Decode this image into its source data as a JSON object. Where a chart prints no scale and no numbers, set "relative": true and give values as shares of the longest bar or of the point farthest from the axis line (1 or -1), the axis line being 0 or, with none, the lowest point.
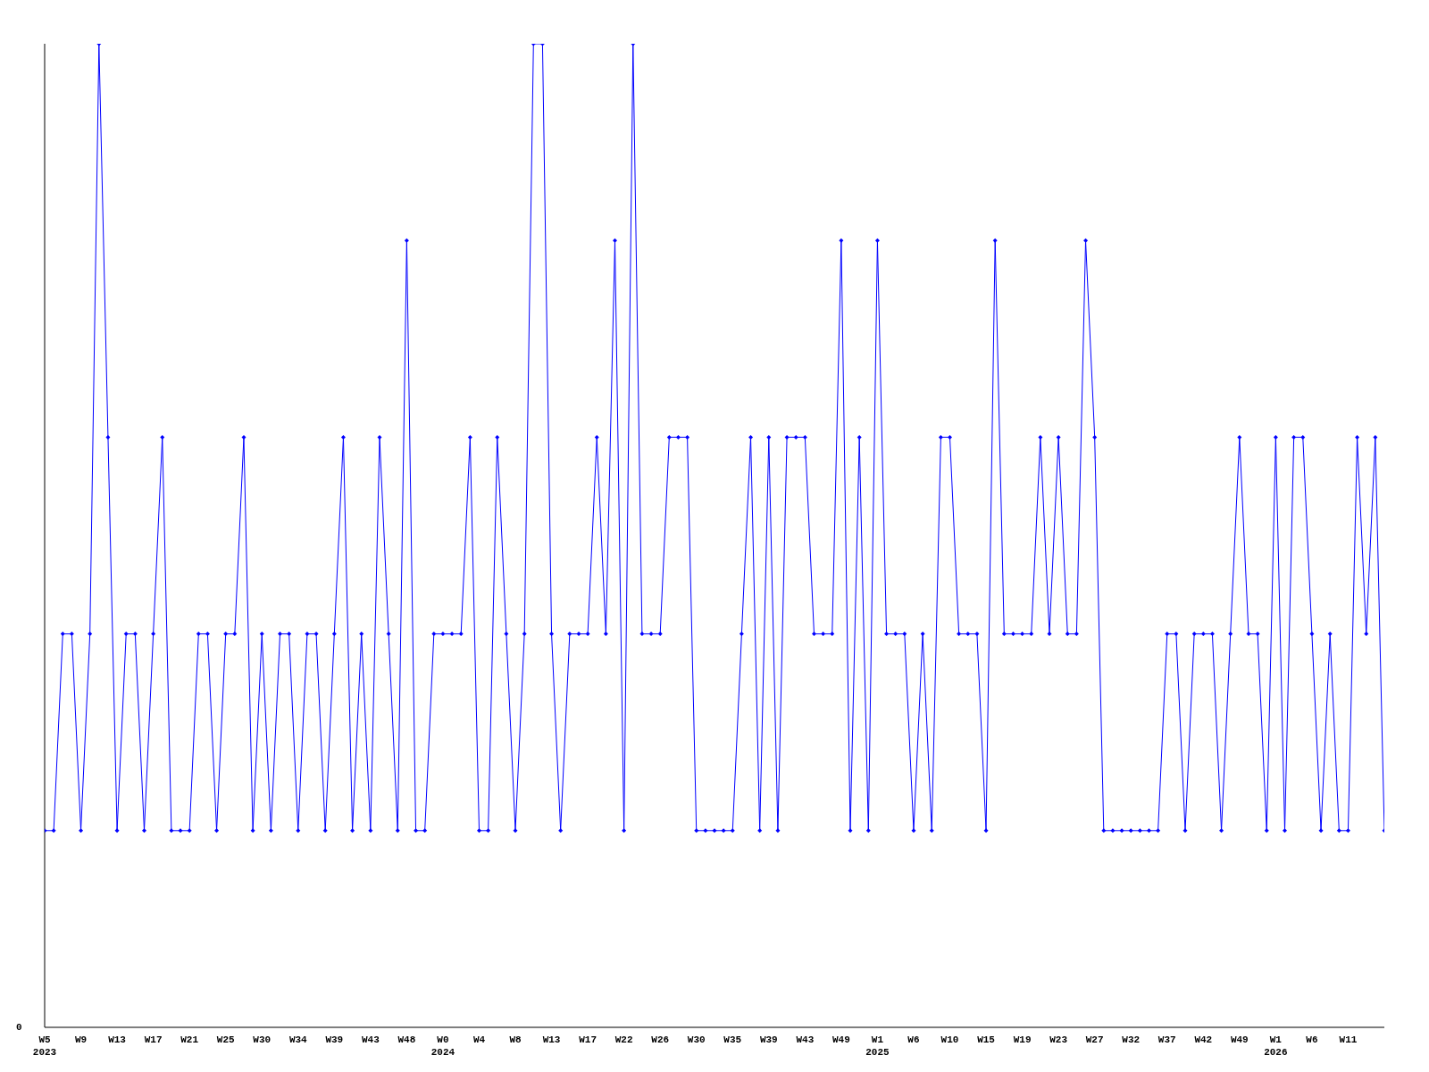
{
  "chart_data": {
    "type": "line",
    "relative": true,
    "marker": "diamond",
    "line_style": "solid",
    "grid": false,
    "legend": false,
    "annotations": [
      "0"
    ],
    "categories": [
      "W5\n2023",
      null,
      null,
      null,
      "W9",
      null,
      null,
      null,
      "W13",
      null,
      null,
      null,
      "W17",
      null,
      null,
      null,
      "W21",
      null,
      null,
      null,
      "W25",
      null,
      null,
      null,
      "W30",
      null,
      null,
      null,
      "W34",
      null,
      null,
      null,
      "W39",
      null,
      null,
      null,
      "W43",
      null,
      null,
      null,
      "W48",
      null,
      null,
      null,
      "W0\n2024",
      null,
      null,
      null,
      "W4",
      null,
      null,
      null,
      "W8",
      null,
      null,
      null,
      "W13",
      null,
      null,
      null,
      "W17",
      null,
      null,
      null,
      "W22",
      null,
      null,
      null,
      "W26",
      null,
      null,
      null,
      "W30",
      null,
      null,
      null,
      "W35",
      null,
      null,
      null,
      "W39",
      null,
      null,
      null,
      "W43",
      null,
      null,
      null,
      "W49",
      null,
      null,
      null,
      "W1\n2025",
      null,
      null,
      null,
      "W6",
      null,
      null,
      null,
      "W10",
      null,
      null,
      null,
      "W15",
      null,
      null,
      null,
      "W19",
      null,
      null,
      null,
      "W23",
      null,
      null,
      null,
      "W27",
      null,
      null,
      null,
      "W32",
      null,
      null,
      null,
      "W37",
      null,
      null,
      null,
      "W42",
      null,
      null,
      null,
      "W49",
      null,
      null,
      null,
      "W1\n2026",
      null,
      null,
      null,
      "W6",
      null,
      null,
      null,
      "W11",
      null,
      null,
      null,
      null
    ],
    "series": [
      {
        "color": "#0000ff",
        "values": [
          0.2,
          0.2,
          0.4,
          0.4,
          0.2,
          0.4,
          1.0,
          0.6,
          0.2,
          0.4,
          0.4,
          0.2,
          0.4,
          0.6,
          0.2,
          0.2,
          0.2,
          0.4,
          0.4,
          0.2,
          0.4,
          0.4,
          0.6,
          0.2,
          0.4,
          0.2,
          0.4,
          0.4,
          0.2,
          0.4,
          0.4,
          0.2,
          0.4,
          0.6,
          0.2,
          0.4,
          0.2,
          0.6,
          0.4,
          0.2,
          0.8,
          0.2,
          0.2,
          0.4,
          0.4,
          0.4,
          0.4,
          0.6,
          0.2,
          0.2,
          0.6,
          0.4,
          0.2,
          0.4,
          1.0,
          1.0,
          0.4,
          0.2,
          0.4,
          0.4,
          0.4,
          0.6,
          0.4,
          0.8,
          0.2,
          1.0,
          0.4,
          0.4,
          0.4,
          0.6,
          0.6,
          0.6,
          0.2,
          0.2,
          0.2,
          0.2,
          0.2,
          0.4,
          0.6,
          0.2,
          0.6,
          0.2,
          0.6,
          0.6,
          0.6,
          0.4,
          0.4,
          0.4,
          0.8,
          0.2,
          0.6,
          0.2,
          0.8,
          0.4,
          0.4,
          0.4,
          0.2,
          0.4,
          0.2,
          0.6,
          0.6,
          0.4,
          0.4,
          0.4,
          0.2,
          0.8,
          0.4,
          0.4,
          0.4,
          0.4,
          0.6,
          0.4,
          0.6,
          0.4,
          0.4,
          0.8,
          0.6,
          0.2,
          0.2,
          0.2,
          0.2,
          0.2,
          0.2,
          0.2,
          0.4,
          0.4,
          0.2,
          0.4,
          0.4,
          0.4,
          0.2,
          0.4,
          0.6,
          0.4,
          0.4,
          0.2,
          0.6,
          0.2,
          0.6,
          0.6,
          0.4,
          0.2,
          0.4,
          0.2,
          0.2,
          0.6,
          0.4,
          0.6,
          0.2
        ]
      }
    ]
  }
}
